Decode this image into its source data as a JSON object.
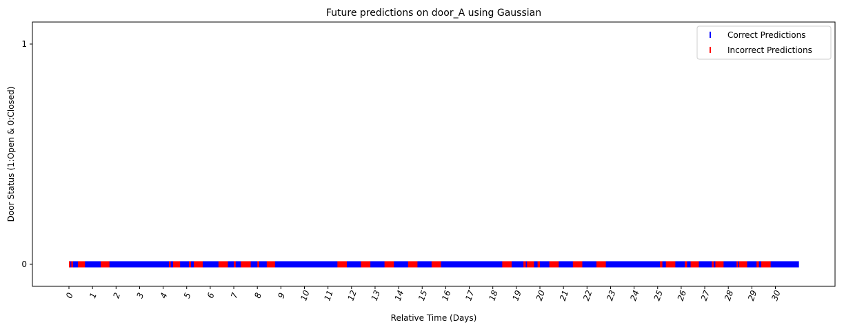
{
  "chart_data": {
    "type": "scatter",
    "title": "Future predictions on door_A using Gaussian",
    "xlabel": "Relative Time (Days)",
    "ylabel": "Door Status (1:Open & 0:Closed)",
    "xlim": [
      -0.5,
      31.5
    ],
    "ylim": [
      -0.1,
      1.1
    ],
    "x_ticks": [
      0,
      1,
      2,
      3,
      4,
      5,
      6,
      7,
      8,
      9,
      10,
      11,
      12,
      13,
      14,
      15,
      16,
      17,
      18,
      19,
      20,
      21,
      22,
      23,
      24,
      25,
      26,
      27,
      28,
      29,
      30
    ],
    "x_tick_labels": [
      "0",
      "1",
      "2",
      "3",
      "4",
      "5",
      "6",
      "7",
      "8",
      "9",
      "10",
      "11",
      "12",
      "13",
      "14",
      "15",
      "16",
      "17",
      "18",
      "19",
      "20",
      "21",
      "22",
      "23",
      "24",
      "25",
      "26",
      "27",
      "28",
      "29",
      "30"
    ],
    "y_ticks": [
      0,
      1
    ],
    "y_tick_labels": [
      "0",
      "1"
    ],
    "grid": false,
    "legend_position": "top-right",
    "x_range_observed": [
      0,
      31
    ],
    "series": [
      {
        "name": "Correct Predictions",
        "color": "#0000ff",
        "marker": "|",
        "y": 0,
        "x_intervals": [
          [
            0.0,
            31.0
          ]
        ]
      },
      {
        "name": "Incorrect Predictions",
        "color": "#ff0000",
        "marker": "|",
        "y": 0,
        "x_intervals": [
          [
            0.0,
            0.05
          ],
          [
            0.1,
            0.17
          ],
          [
            0.38,
            0.68
          ],
          [
            1.35,
            1.72
          ],
          [
            4.25,
            4.32
          ],
          [
            4.42,
            4.72
          ],
          [
            5.1,
            5.18
          ],
          [
            5.3,
            5.68
          ],
          [
            6.35,
            6.75
          ],
          [
            7.0,
            7.08
          ],
          [
            7.3,
            7.72
          ],
          [
            8.0,
            8.08
          ],
          [
            8.4,
            8.75
          ],
          [
            11.4,
            11.8
          ],
          [
            12.4,
            12.8
          ],
          [
            13.4,
            13.8
          ],
          [
            14.4,
            14.8
          ],
          [
            15.4,
            15.8
          ],
          [
            18.4,
            18.8
          ],
          [
            19.3,
            19.4
          ],
          [
            19.45,
            19.75
          ],
          [
            19.9,
            20.0
          ],
          [
            20.4,
            20.8
          ],
          [
            21.4,
            21.8
          ],
          [
            22.4,
            22.8
          ],
          [
            25.1,
            25.2
          ],
          [
            25.35,
            25.75
          ],
          [
            26.15,
            26.25
          ],
          [
            26.4,
            26.75
          ],
          [
            27.3,
            27.38
          ],
          [
            27.45,
            27.8
          ],
          [
            28.35,
            28.4
          ],
          [
            28.45,
            28.8
          ],
          [
            29.2,
            29.3
          ],
          [
            29.4,
            29.8
          ]
        ]
      }
    ]
  }
}
